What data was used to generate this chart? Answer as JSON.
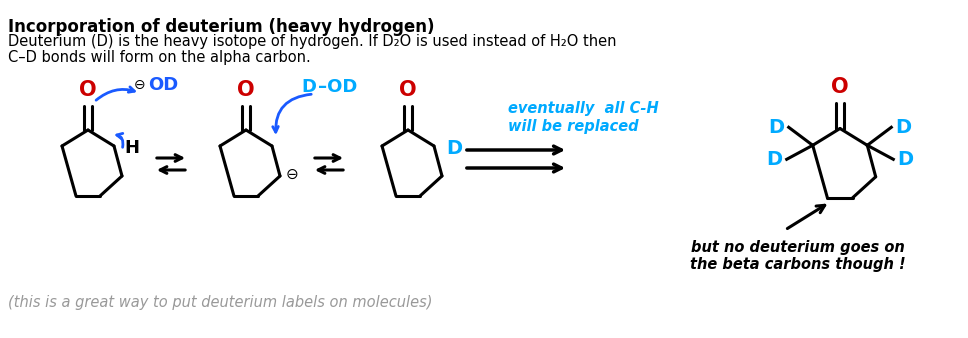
{
  "title": "Incorporation of deuterium (heavy hydrogen)",
  "subtitle_line1": "Deuterium (D) is the heavy isotope of hydrogen. If D₂O is used instead of H₂O then",
  "subtitle_line2": "C–D bonds will form on the alpha carbon.",
  "italic_note": "(this is a great way to put deuterium labels on molecules)",
  "beta_note_line1": "but no deuterium goes on",
  "beta_note_line2": "the beta carbons though !",
  "eventually_line1": "eventually  all C-H",
  "eventually_line2": "will be replaced",
  "background_color": "#ffffff",
  "black": "#000000",
  "red": "#cc0000",
  "blue": "#1a5aff",
  "cyan": "#00aaff",
  "gray": "#999999"
}
